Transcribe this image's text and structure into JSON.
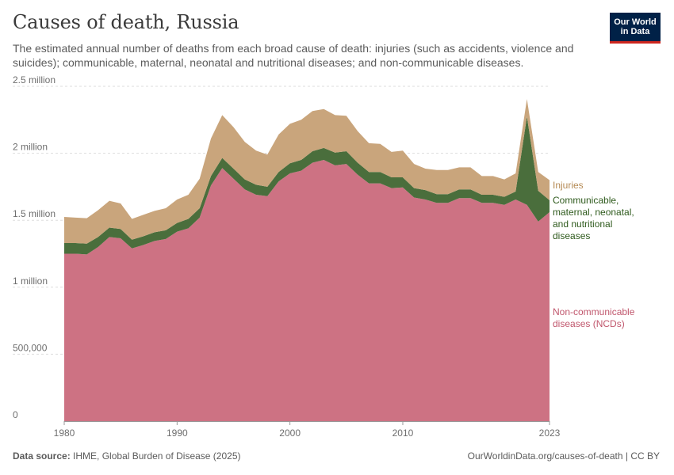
{
  "header": {
    "title": "Causes of death, Russia",
    "subtitle": "The estimated annual number of deaths from each broad cause of death: injuries (such as accidents, violence and suicides); communicable, maternal, neonatal and nutritional diseases; and non-communicable diseases."
  },
  "logo": {
    "text": "Our World\nin Data"
  },
  "footer": {
    "source_label": "Data source:",
    "source_value": "IHME, Global Burden of Disease (2025)",
    "link": "OurWorldinData.org/causes-of-death | CC BY"
  },
  "colors": {
    "ncd": "#cd7283",
    "communicable": "#4a6e3c",
    "injuries": "#c9a57c",
    "injuries_label": "#b58a54",
    "communicable_label": "#2e5a1c",
    "ncd_label": "#c0566c"
  },
  "chart_data": {
    "type": "area",
    "stacked": true,
    "title": "Causes of death, Russia",
    "xlabel": "",
    "ylabel": "",
    "ylim": [
      0,
      2500000
    ],
    "x": [
      1980,
      1981,
      1982,
      1983,
      1984,
      1985,
      1986,
      1987,
      1988,
      1989,
      1990,
      1991,
      1992,
      1993,
      1994,
      1995,
      1996,
      1997,
      1998,
      1999,
      2000,
      2001,
      2002,
      2003,
      2004,
      2005,
      2006,
      2007,
      2008,
      2009,
      2010,
      2011,
      2012,
      2013,
      2014,
      2015,
      2016,
      2017,
      2018,
      2019,
      2020,
      2021,
      2022,
      2023
    ],
    "x_ticks": [
      {
        "value": 1980,
        "label": "1980"
      },
      {
        "value": 1990,
        "label": "1990"
      },
      {
        "value": 2000,
        "label": "2000"
      },
      {
        "value": 2010,
        "label": "2010"
      },
      {
        "value": 2023,
        "label": "2023"
      }
    ],
    "y_ticks": [
      {
        "value": 0,
        "label": "0"
      },
      {
        "value": 500000,
        "label": "500,000"
      },
      {
        "value": 1000000,
        "label": "1 million"
      },
      {
        "value": 1500000,
        "label": "1.5 million"
      },
      {
        "value": 2000000,
        "label": "2 million"
      },
      {
        "value": 2500000,
        "label": "2.5 million"
      }
    ],
    "series": [
      {
        "key": "ncd",
        "name": "Non-communicable diseases (NCDs)",
        "values": [
          1250000,
          1250000,
          1245000,
          1300000,
          1375000,
          1365000,
          1290000,
          1315000,
          1345000,
          1360000,
          1415000,
          1440000,
          1520000,
          1760000,
          1890000,
          1810000,
          1730000,
          1690000,
          1680000,
          1790000,
          1850000,
          1870000,
          1930000,
          1950000,
          1910000,
          1920000,
          1840000,
          1775000,
          1775000,
          1740000,
          1745000,
          1670000,
          1655000,
          1630000,
          1630000,
          1665000,
          1665000,
          1630000,
          1630000,
          1615000,
          1655000,
          1615000,
          1490000,
          1560000
        ]
      },
      {
        "key": "communicable",
        "name": "Communicable, maternal, neonatal, and nutritional diseases",
        "values": [
          80000,
          80000,
          80000,
          75000,
          70000,
          70000,
          65000,
          65000,
          65000,
          65000,
          65000,
          70000,
          70000,
          70000,
          75000,
          75000,
          75000,
          75000,
          70000,
          70000,
          75000,
          80000,
          85000,
          90000,
          95000,
          95000,
          90000,
          85000,
          85000,
          80000,
          75000,
          70000,
          70000,
          65000,
          65000,
          65000,
          65000,
          60000,
          60000,
          60000,
          60000,
          660000,
          230000,
          90000
        ]
      },
      {
        "key": "injuries",
        "name": "Injuries",
        "values": [
          195000,
          190000,
          190000,
          200000,
          200000,
          190000,
          155000,
          160000,
          160000,
          165000,
          175000,
          180000,
          220000,
          280000,
          320000,
          310000,
          280000,
          255000,
          240000,
          280000,
          295000,
          300000,
          300000,
          290000,
          280000,
          265000,
          235000,
          215000,
          210000,
          190000,
          200000,
          180000,
          160000,
          180000,
          180000,
          165000,
          165000,
          140000,
          140000,
          130000,
          135000,
          130000,
          140000,
          150000
        ]
      }
    ],
    "legend": [
      {
        "key": "injuries",
        "label": "Injuries"
      },
      {
        "key": "communicable",
        "label": "Communicable, maternal, neonatal, and nutritional diseases"
      },
      {
        "key": "ncd",
        "label": "Non-communicable diseases (NCDs)"
      }
    ],
    "legend_position": "right"
  }
}
